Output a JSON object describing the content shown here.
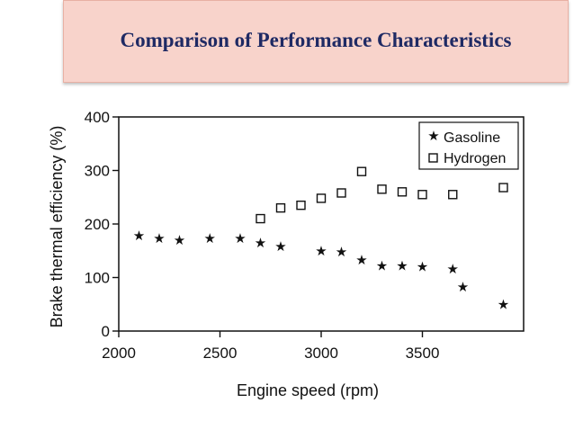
{
  "slide": {
    "title": "Comparison of Performance Characteristics"
  },
  "chart_data": {
    "type": "scatter",
    "xlabel": "Engine speed (rpm)",
    "ylabel": "Brake thermal efficiency (%)",
    "xlim": [
      2000,
      4000
    ],
    "ylim": [
      0,
      400
    ],
    "xticks": [
      2000,
      2500,
      3000,
      3500
    ],
    "yticks": [
      0,
      100,
      200,
      300,
      400
    ],
    "legend_position": "top-right",
    "series": [
      {
        "name": "Gasoline",
        "marker": "star",
        "x": [
          2100,
          2200,
          2300,
          2450,
          2600,
          2700,
          2800,
          3000,
          3100,
          3200,
          3300,
          3400,
          3500,
          3650,
          3700,
          3900
        ],
        "y": [
          178,
          173,
          170,
          173,
          173,
          165,
          158,
          150,
          148,
          133,
          122,
          122,
          120,
          116,
          82,
          50
        ]
      },
      {
        "name": "Hydrogen",
        "marker": "square",
        "x": [
          2700,
          2800,
          2900,
          3000,
          3100,
          3200,
          3300,
          3400,
          3500,
          3650,
          3900
        ],
        "y": [
          210,
          230,
          235,
          248,
          258,
          298,
          265,
          260,
          255,
          255,
          268
        ]
      }
    ]
  }
}
